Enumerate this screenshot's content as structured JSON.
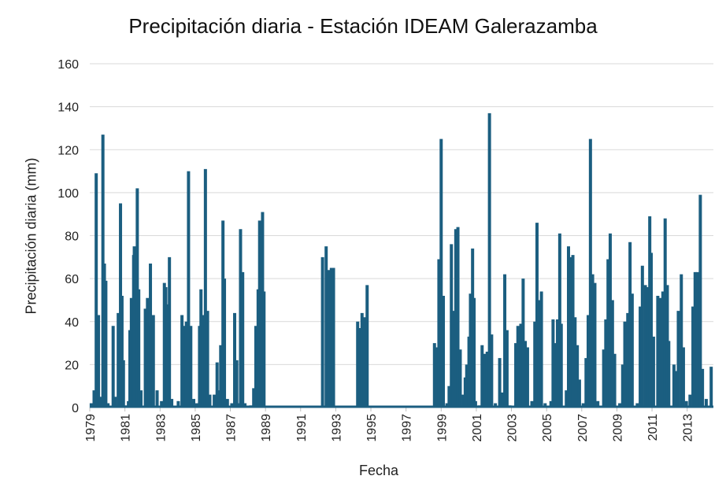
{
  "chart_data": {
    "type": "bar",
    "title": "Precipitación diaria - Estación IDEAM Galerazamba",
    "xlabel": "Fecha",
    "ylabel": "Precipitación diaria (mm)",
    "ylim": [
      0,
      160
    ],
    "yticks": [
      0,
      20,
      40,
      60,
      80,
      100,
      120,
      140,
      160
    ],
    "xlim": [
      "1979-01-01",
      "2014-06-30"
    ],
    "xticks": [
      "1979",
      "1981",
      "1983",
      "1985",
      "1987",
      "1989",
      "1991",
      "1993",
      "1995",
      "1997",
      "1999",
      "2001",
      "2003",
      "2005",
      "2007",
      "2009",
      "2011",
      "2013"
    ],
    "grid": "horizontal",
    "color": "#1b5e80",
    "series": [
      {
        "values": [
          [
            "1979-02-01",
            2
          ],
          [
            "1979-04-01",
            8
          ],
          [
            "1979-05-15",
            109
          ],
          [
            "1979-07-01",
            43
          ],
          [
            "1979-08-15",
            5
          ],
          [
            "1979-10-01",
            127
          ],
          [
            "1979-11-01",
            67
          ],
          [
            "1979-12-01",
            59
          ],
          [
            "1980-01-15",
            2
          ],
          [
            "1980-05-01",
            38
          ],
          [
            "1980-06-15",
            5
          ],
          [
            "1980-08-15",
            44
          ],
          [
            "1980-10-01",
            95
          ],
          [
            "1980-11-01",
            52
          ],
          [
            "1980-12-01",
            22
          ],
          [
            "1981-02-01",
            1
          ],
          [
            "1981-03-15",
            3
          ],
          [
            "1981-04-15",
            36
          ],
          [
            "1981-05-15",
            51
          ],
          [
            "1981-07-01",
            71
          ],
          [
            "1981-07-15",
            75
          ],
          [
            "1981-09-15",
            102
          ],
          [
            "1981-10-15",
            55
          ],
          [
            "1981-12-01",
            8
          ],
          [
            "1982-03-01",
            46
          ],
          [
            "1982-04-15",
            51
          ],
          [
            "1982-05-15",
            38
          ],
          [
            "1982-06-15",
            67
          ],
          [
            "1982-08-15",
            43
          ],
          [
            "1982-11-01",
            8
          ],
          [
            "1983-02-01",
            3
          ],
          [
            "1983-04-01",
            58
          ],
          [
            "1983-05-01",
            56
          ],
          [
            "1983-06-01",
            48
          ],
          [
            "1983-07-15",
            70
          ],
          [
            "1983-09-01",
            4
          ],
          [
            "1984-01-15",
            3
          ],
          [
            "1984-04-01",
            43
          ],
          [
            "1984-05-15",
            38
          ],
          [
            "1984-07-01",
            40
          ],
          [
            "1984-08-15",
            110
          ],
          [
            "1984-10-01",
            38
          ],
          [
            "1984-12-01",
            4
          ],
          [
            "1985-02-01",
            2
          ],
          [
            "1985-04-01",
            38
          ],
          [
            "1985-05-01",
            55
          ],
          [
            "1985-06-15",
            43
          ],
          [
            "1985-08-01",
            111
          ],
          [
            "1985-09-15",
            45
          ],
          [
            "1985-11-01",
            6
          ],
          [
            "1986-02-01",
            6
          ],
          [
            "1986-04-01",
            21
          ],
          [
            "1986-05-15",
            8
          ],
          [
            "1986-06-15",
            29
          ],
          [
            "1986-08-01",
            87
          ],
          [
            "1986-09-01",
            60
          ],
          [
            "1986-11-01",
            4
          ],
          [
            "1987-02-01",
            2
          ],
          [
            "1987-04-01",
            44
          ],
          [
            "1987-05-15",
            22
          ],
          [
            "1987-07-01",
            2
          ],
          [
            "1987-08-01",
            83
          ],
          [
            "1987-09-15",
            63
          ],
          [
            "1987-11-01",
            2
          ],
          [
            "1988-03-01",
            1
          ],
          [
            "1988-05-01",
            9
          ],
          [
            "1988-06-15",
            38
          ],
          [
            "1988-08-01",
            55
          ],
          [
            "1988-09-01",
            87
          ],
          [
            "1988-10-01",
            46
          ],
          [
            "1988-11-01",
            91
          ],
          [
            "1988-12-01",
            54
          ],
          [
            "1992-04-01",
            70
          ],
          [
            "1992-06-15",
            75
          ],
          [
            "1992-08-15",
            64
          ],
          [
            "1992-10-01",
            65
          ],
          [
            "1992-11-15",
            65
          ],
          [
            "1994-04-01",
            40
          ],
          [
            "1994-05-15",
            37
          ],
          [
            "1994-07-01",
            44
          ],
          [
            "1994-08-15",
            42
          ],
          [
            "1994-10-15",
            57
          ],
          [
            "1998-08-15",
            30
          ],
          [
            "1998-10-01",
            28
          ],
          [
            "1998-11-15",
            69
          ],
          [
            "1999-01-01",
            125
          ],
          [
            "1999-02-15",
            52
          ],
          [
            "1999-05-01",
            2
          ],
          [
            "1999-06-15",
            10
          ],
          [
            "1999-08-01",
            76
          ],
          [
            "1999-09-15",
            45
          ],
          [
            "1999-11-01",
            83
          ],
          [
            "1999-12-15",
            84
          ],
          [
            "2000-02-01",
            27
          ],
          [
            "2000-04-01",
            6
          ],
          [
            "2000-05-15",
            14
          ],
          [
            "2000-06-15",
            20
          ],
          [
            "2000-08-01",
            33
          ],
          [
            "2000-09-01",
            53
          ],
          [
            "2000-10-15",
            74
          ],
          [
            "2000-11-15",
            51
          ],
          [
            "2000-12-15",
            3
          ],
          [
            "2001-03-01",
            1
          ],
          [
            "2001-05-01",
            29
          ],
          [
            "2001-07-01",
            25
          ],
          [
            "2001-08-15",
            26
          ],
          [
            "2001-10-01",
            137
          ],
          [
            "2001-11-15",
            34
          ],
          [
            "2002-02-01",
            2
          ],
          [
            "2002-05-01",
            23
          ],
          [
            "2002-07-01",
            7
          ],
          [
            "2002-08-15",
            62
          ],
          [
            "2002-10-01",
            36
          ],
          [
            "2002-12-01",
            1
          ],
          [
            "2003-04-01",
            30
          ],
          [
            "2003-05-15",
            38
          ],
          [
            "2003-07-15",
            39
          ],
          [
            "2003-09-01",
            60
          ],
          [
            "2003-10-15",
            31
          ],
          [
            "2003-12-01",
            28
          ],
          [
            "2004-03-01",
            3
          ],
          [
            "2004-05-01",
            40
          ],
          [
            "2004-06-15",
            86
          ],
          [
            "2004-08-01",
            50
          ],
          [
            "2004-09-15",
            54
          ],
          [
            "2004-12-01",
            2
          ],
          [
            "2005-04-01",
            3
          ],
          [
            "2005-05-15",
            41
          ],
          [
            "2005-06-15",
            30
          ],
          [
            "2005-08-15",
            41
          ],
          [
            "2005-10-01",
            81
          ],
          [
            "2005-11-01",
            39
          ],
          [
            "2006-02-15",
            8
          ],
          [
            "2006-04-01",
            75
          ],
          [
            "2006-05-15",
            70
          ],
          [
            "2006-07-01",
            71
          ],
          [
            "2006-08-15",
            42
          ],
          [
            "2006-10-01",
            29
          ],
          [
            "2006-11-15",
            13
          ],
          [
            "2007-02-01",
            2
          ],
          [
            "2007-04-01",
            23
          ],
          [
            "2007-05-15",
            43
          ],
          [
            "2007-07-01",
            125
          ],
          [
            "2007-08-15",
            62
          ],
          [
            "2007-10-01",
            58
          ],
          [
            "2007-12-01",
            3
          ],
          [
            "2008-04-01",
            27
          ],
          [
            "2008-05-15",
            41
          ],
          [
            "2008-07-01",
            69
          ],
          [
            "2008-08-15",
            81
          ],
          [
            "2008-10-01",
            50
          ],
          [
            "2008-11-15",
            25
          ],
          [
            "2009-03-01",
            2
          ],
          [
            "2009-05-01",
            20
          ],
          [
            "2009-06-15",
            40
          ],
          [
            "2009-08-15",
            44
          ],
          [
            "2009-10-01",
            77
          ],
          [
            "2009-11-15",
            53
          ],
          [
            "2010-03-01",
            2
          ],
          [
            "2010-05-01",
            47
          ],
          [
            "2010-06-15",
            66
          ],
          [
            "2010-08-15",
            57
          ],
          [
            "2010-10-01",
            56
          ],
          [
            "2010-11-15",
            89
          ],
          [
            "2010-12-15",
            72
          ],
          [
            "2011-02-01",
            33
          ],
          [
            "2011-05-01",
            52
          ],
          [
            "2011-06-15",
            51
          ],
          [
            "2011-08-15",
            54
          ],
          [
            "2011-10-01",
            88
          ],
          [
            "2011-11-15",
            57
          ],
          [
            "2011-12-15",
            31
          ],
          [
            "2012-04-01",
            20
          ],
          [
            "2012-05-15",
            17
          ],
          [
            "2012-07-01",
            45
          ],
          [
            "2012-09-01",
            62
          ],
          [
            "2012-10-15",
            28
          ],
          [
            "2012-12-15",
            3
          ],
          [
            "2013-03-01",
            6
          ],
          [
            "2013-05-01",
            47
          ],
          [
            "2013-06-15",
            63
          ],
          [
            "2013-08-01",
            63
          ],
          [
            "2013-10-01",
            99
          ],
          [
            "2013-11-15",
            18
          ],
          [
            "2014-02-01",
            4
          ],
          [
            "2014-05-15",
            19
          ]
        ]
      }
    ]
  }
}
